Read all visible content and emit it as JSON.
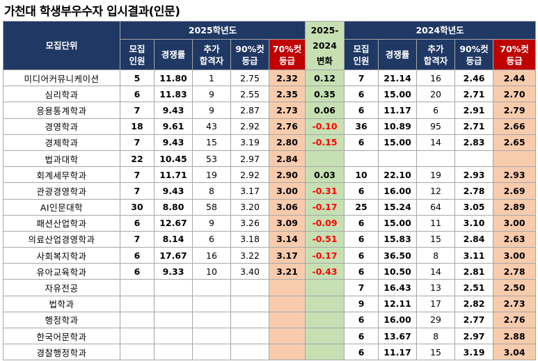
{
  "title": "가천대 학생부우수자 입시결과(인문)",
  "header": {
    "unit": "모집단위",
    "y2025": "2025학년도",
    "diff": "2025-\n2024\n변화",
    "y2024": "2024학년도",
    "cols2025": [
      "모집\n인원",
      "경쟁률",
      "추가\n합격자",
      "90%컷\n등급",
      "70%컷\n등급"
    ],
    "cols2024": [
      "모집\n인원",
      "경쟁률",
      "추가\n합격자",
      "90%컷\n등급",
      "70%컷\n등급"
    ]
  },
  "colors": {
    "header_bg": "#1f3864",
    "peach": "#f8cbad",
    "green": "#c6e0b4",
    "red_header": "#c00000",
    "negative_text": "#ff0000"
  },
  "rows": [
    {
      "unit": "미디어커뮤니케이션",
      "r25": "5",
      "c25": "11.80",
      "a25": "1",
      "g90_25": "2.75",
      "g70_25": "2.32",
      "diff": "0.12",
      "r24": "7",
      "c24": "21.14",
      "a24": "16",
      "g90_24": "2.46",
      "g70_24": "2.44"
    },
    {
      "unit": "심리학과",
      "r25": "6",
      "c25": "11.83",
      "a25": "9",
      "g90_25": "2.55",
      "g70_25": "2.35",
      "diff": "0.35",
      "r24": "6",
      "c24": "15.00",
      "a24": "20",
      "g90_24": "2.71",
      "g70_24": "2.70"
    },
    {
      "unit": "응용통계학과",
      "r25": "7",
      "c25": "9.43",
      "a25": "9",
      "g90_25": "2.87",
      "g70_25": "2.73",
      "diff": "0.06",
      "r24": "6",
      "c24": "11.17",
      "a24": "6",
      "g90_24": "2.91",
      "g70_24": "2.79"
    },
    {
      "unit": "경영학과",
      "r25": "18",
      "c25": "9.61",
      "a25": "43",
      "g90_25": "2.92",
      "g70_25": "2.76",
      "diff": "-0.10",
      "r24": "36",
      "c24": "10.89",
      "a24": "95",
      "g90_24": "2.71",
      "g70_24": "2.66"
    },
    {
      "unit": "경제학과",
      "r25": "7",
      "c25": "9.43",
      "a25": "15",
      "g90_25": "3.19",
      "g70_25": "2.80",
      "diff": "-0.15",
      "r24": "6",
      "c24": "15.00",
      "a24": "14",
      "g90_24": "2.83",
      "g70_24": "2.65"
    },
    {
      "unit": "법과대학",
      "r25": "22",
      "c25": "10.45",
      "a25": "53",
      "g90_25": "2.97",
      "g70_25": "2.84",
      "diff": "",
      "r24": "",
      "c24": "",
      "a24": "",
      "g90_24": "",
      "g70_24": ""
    },
    {
      "unit": "회계세무학과",
      "r25": "7",
      "c25": "11.71",
      "a25": "19",
      "g90_25": "2.92",
      "g70_25": "2.90",
      "diff": "0.03",
      "r24": "10",
      "c24": "22.10",
      "a24": "19",
      "g90_24": "2.93",
      "g70_24": "2.93"
    },
    {
      "unit": "관광경영학과",
      "r25": "7",
      "c25": "9.43",
      "a25": "8",
      "g90_25": "3.17",
      "g70_25": "3.00",
      "diff": "-0.31",
      "r24": "6",
      "c24": "16.00",
      "a24": "12",
      "g90_24": "2.78",
      "g70_24": "2.69"
    },
    {
      "unit": "AI인문대학",
      "r25": "30",
      "c25": "8.80",
      "a25": "58",
      "g90_25": "3.20",
      "g70_25": "3.06",
      "diff": "-0.17",
      "r24": "25",
      "c24": "15.24",
      "a24": "64",
      "g90_24": "3.05",
      "g70_24": "2.89"
    },
    {
      "unit": "패션산업학과",
      "r25": "6",
      "c25": "12.67",
      "a25": "9",
      "g90_25": "3.26",
      "g70_25": "3.09",
      "diff": "-0.09",
      "r24": "6",
      "c24": "15.00",
      "a24": "11",
      "g90_24": "3.10",
      "g70_24": "3.00"
    },
    {
      "unit": "의료산업경영학과",
      "r25": "7",
      "c25": "8.14",
      "a25": "6",
      "g90_25": "3.18",
      "g70_25": "3.14",
      "diff": "-0.51",
      "r24": "6",
      "c24": "15.83",
      "a24": "15",
      "g90_24": "2.84",
      "g70_24": "2.63"
    },
    {
      "unit": "사회복지학과",
      "r25": "6",
      "c25": "17.67",
      "a25": "16",
      "g90_25": "3.22",
      "g70_25": "3.17",
      "diff": "-0.17",
      "r24": "6",
      "c24": "36.50",
      "a24": "8",
      "g90_24": "3.11",
      "g70_24": "3.00"
    },
    {
      "unit": "유아교육학과",
      "r25": "6",
      "c25": "9.33",
      "a25": "10",
      "g90_25": "3.40",
      "g70_25": "3.21",
      "diff": "-0.43",
      "r24": "6",
      "c24": "10.50",
      "a24": "14",
      "g90_24": "2.81",
      "g70_24": "2.78"
    },
    {
      "unit": "자유전공",
      "r25": "",
      "c25": "",
      "a25": "",
      "g90_25": "",
      "g70_25": "",
      "diff": "",
      "r24": "7",
      "c24": "16.43",
      "a24": "13",
      "g90_24": "2.51",
      "g70_24": "2.50"
    },
    {
      "unit": "법학과",
      "r25": "",
      "c25": "",
      "a25": "",
      "g90_25": "",
      "g70_25": "",
      "diff": "",
      "r24": "9",
      "c24": "12.11",
      "a24": "17",
      "g90_24": "2.82",
      "g70_24": "2.73"
    },
    {
      "unit": "행정학과",
      "r25": "",
      "c25": "",
      "a25": "",
      "g90_25": "",
      "g70_25": "",
      "diff": "",
      "r24": "6",
      "c24": "16.00",
      "a24": "29",
      "g90_24": "2.77",
      "g70_24": "2.76"
    },
    {
      "unit": "한국어문학과",
      "r25": "",
      "c25": "",
      "a25": "",
      "g90_25": "",
      "g70_25": "",
      "diff": "",
      "r24": "6",
      "c24": "13.67",
      "a24": "8",
      "g90_24": "2.97",
      "g70_24": "2.88"
    },
    {
      "unit": "경찰행정학과",
      "r25": "",
      "c25": "",
      "a25": "",
      "g90_25": "",
      "g70_25": "",
      "diff": "",
      "r24": "6",
      "c24": "11.17",
      "a24": "15",
      "g90_24": "3.19",
      "g70_24": "3.04"
    }
  ]
}
